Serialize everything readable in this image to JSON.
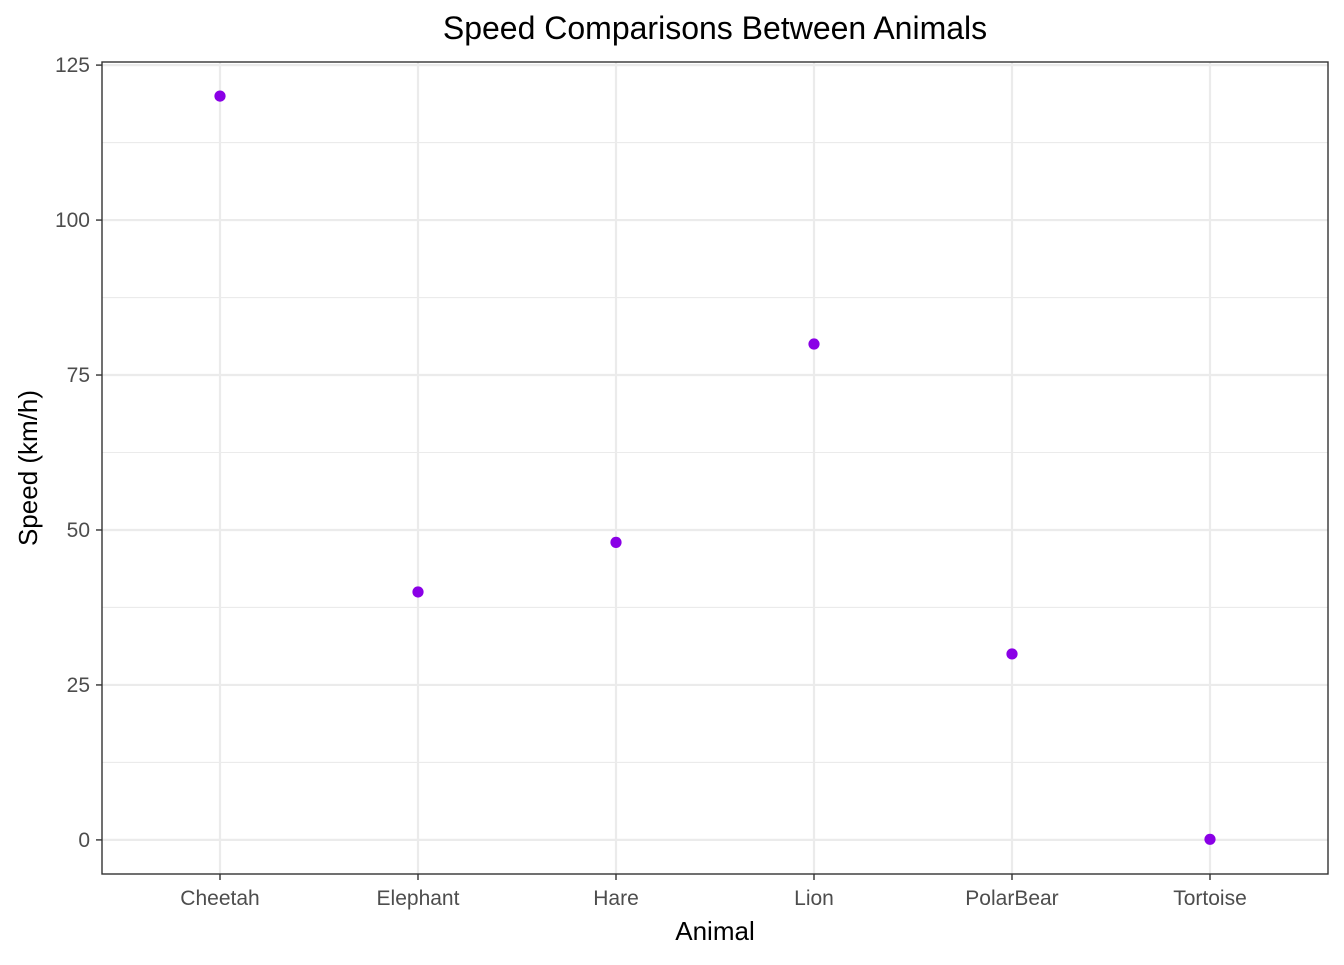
{
  "chart_data": {
    "type": "scatter",
    "title": "Speed Comparisons Between Animals",
    "xlabel": "Animal",
    "ylabel": "Speed (km/h)",
    "categories": [
      "Cheetah",
      "Elephant",
      "Hare",
      "Lion",
      "PolarBear",
      "Tortoise"
    ],
    "values": [
      120,
      40,
      48,
      80,
      30,
      0.1
    ],
    "ylim": [
      -5.5,
      125.5
    ],
    "yticks": [
      0,
      25,
      50,
      75,
      100,
      125
    ],
    "grid": true,
    "theme": "bw",
    "point_color": "#8A00E6",
    "grid_color": "#EBEBEB",
    "panel_border_color": "#333333"
  }
}
